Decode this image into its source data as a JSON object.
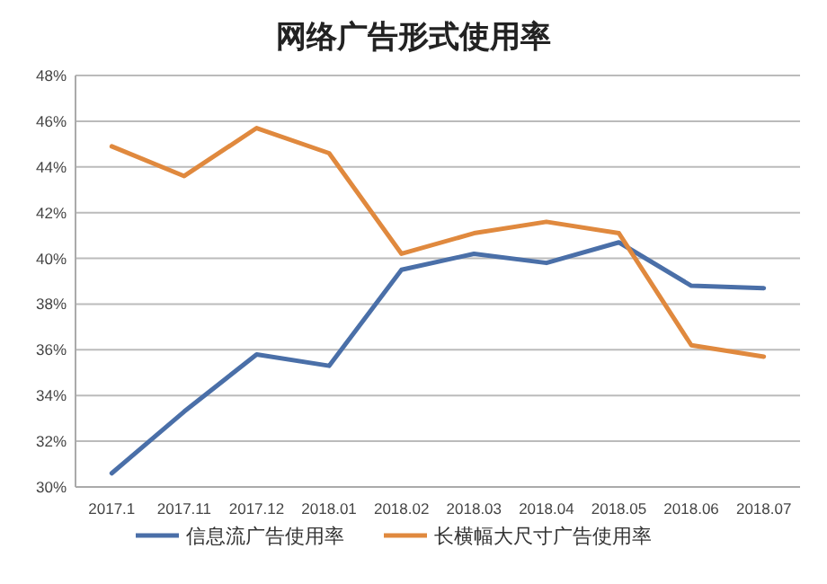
{
  "chart_data": {
    "type": "line",
    "title": "网络广告形式使用率",
    "categories": [
      "2017.1",
      "2017.11",
      "2017.12",
      "2018.01",
      "2018.02",
      "2018.03",
      "2018.04",
      "2018.05",
      "2018.06",
      "2018.07"
    ],
    "series": [
      {
        "name": "信息流广告使用率",
        "color": "#4a6fa8",
        "values": [
          30.6,
          33.3,
          35.8,
          35.3,
          39.5,
          40.2,
          39.8,
          40.7,
          38.8,
          38.7
        ]
      },
      {
        "name": "长横幅大尺寸广告使用率",
        "color": "#e0893e",
        "values": [
          44.9,
          43.6,
          45.7,
          44.6,
          40.2,
          41.1,
          41.6,
          41.1,
          36.2,
          35.7
        ]
      }
    ],
    "ylim": [
      30,
      48
    ],
    "yticks": [
      {
        "value": 30,
        "label": "30%"
      },
      {
        "value": 32,
        "label": "32%"
      },
      {
        "value": 34,
        "label": "34%"
      },
      {
        "value": 36,
        "label": "36%"
      },
      {
        "value": 38,
        "label": "38%"
      },
      {
        "value": 40,
        "label": "40%"
      },
      {
        "value": 42,
        "label": "42%"
      },
      {
        "value": 44,
        "label": "44%"
      },
      {
        "value": 46,
        "label": "46%"
      },
      {
        "value": 48,
        "label": "48%"
      }
    ],
    "grid": "y",
    "legend": "bottom",
    "marker": "none",
    "line_style": "solid"
  }
}
